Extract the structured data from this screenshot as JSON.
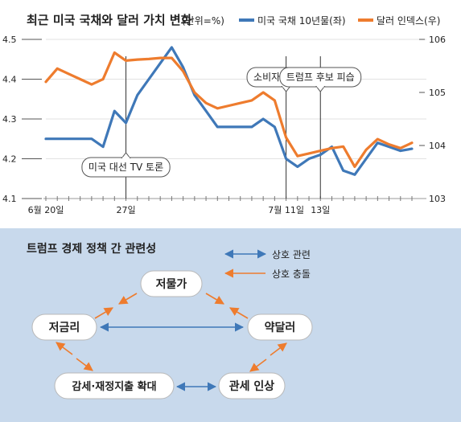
{
  "chart_data": {
    "type": "line",
    "title": "최근 미국 국채와 달러 가치 변화",
    "title_unit": "(단위=%)",
    "legend_placement": "top-right",
    "series": [
      {
        "name": "미국 국채 10년물(좌)",
        "color": "#3f78b8",
        "axis": "left",
        "values": [
          4.25,
          4.25,
          4.25,
          4.25,
          4.25,
          4.23,
          4.32,
          4.29,
          4.36,
          4.4,
          4.44,
          4.48,
          4.43,
          4.36,
          4.32,
          4.28,
          4.28,
          4.28,
          4.28,
          4.3,
          4.28,
          4.2,
          4.18,
          4.2,
          4.21,
          4.23,
          4.17,
          4.16,
          4.2,
          4.24,
          4.23,
          4.22,
          4.225
        ]
      },
      {
        "name": "달러 인덱스(우)",
        "color": "#ee7c2e",
        "axis": "right",
        "values": [
          105.2,
          105.45,
          105.35,
          105.25,
          105.15,
          105.25,
          105.75,
          105.6,
          105.62,
          105.63,
          105.65,
          105.65,
          105.4,
          105.0,
          104.8,
          104.7,
          104.75,
          104.8,
          104.85,
          105.0,
          104.85,
          104.15,
          103.8,
          103.85,
          103.9,
          103.95,
          103.98,
          103.6,
          103.92,
          104.12,
          104.02,
          103.95,
          104.05
        ]
      }
    ],
    "left_axis": {
      "min": 4.1,
      "max": 4.5,
      "ticks": [
        "4.1",
        "4.2",
        "4.3",
        "4.4",
        "4.5"
      ]
    },
    "right_axis": {
      "min": 103,
      "max": 106,
      "ticks": [
        "103",
        "104",
        "105",
        "106"
      ]
    },
    "x_labels": [
      {
        "index": 0,
        "label": "6월 20일"
      },
      {
        "index": 7,
        "label": "27일"
      },
      {
        "index": 21,
        "label": "7월 11일"
      },
      {
        "index": 24,
        "label": "13일"
      }
    ],
    "annotations": [
      {
        "index": 7,
        "text": "미국 대선 TV 토론"
      },
      {
        "index": 21,
        "text": "소비자물가 발표"
      },
      {
        "index": 24,
        "text": "트럼프 후보 피습"
      }
    ]
  },
  "diagram": {
    "title": "트럼프 경제 정책 간 관련성",
    "legend": {
      "related": "상호 관련",
      "conflict": "상호 충돌"
    },
    "nodes": {
      "low_price": "저물가",
      "low_rate": "저금리",
      "weak_dollar": "약달러",
      "tax_cut": "감세·재정지출 확대",
      "tariff": "관세 인상"
    },
    "colors": {
      "related": "#3f78b8",
      "conflict": "#ee7c2e",
      "background": "#c8d9ec"
    }
  }
}
